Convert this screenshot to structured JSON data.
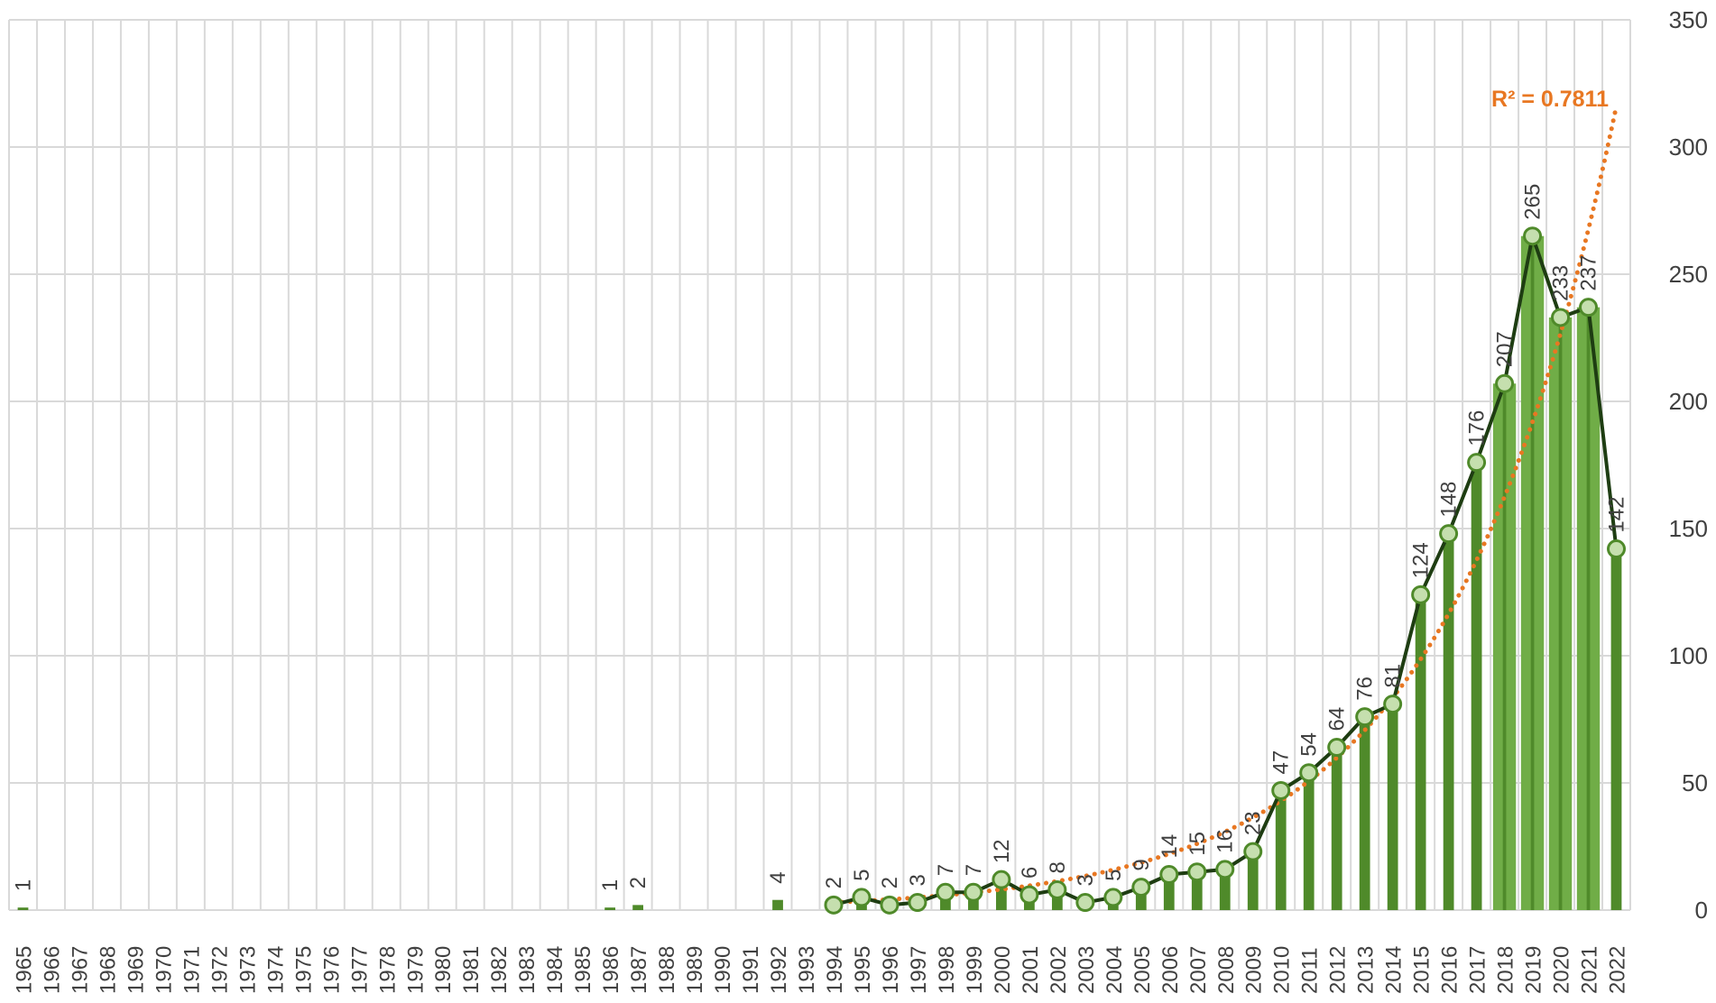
{
  "chart_data": {
    "type": "bar",
    "categories": [
      "1965",
      "1966",
      "1967",
      "1968",
      "1969",
      "1970",
      "1971",
      "1972",
      "1973",
      "1974",
      "1975",
      "1976",
      "1977",
      "1978",
      "1979",
      "1980",
      "1981",
      "1982",
      "1983",
      "1984",
      "1985",
      "1986",
      "1987",
      "1988",
      "1989",
      "1990",
      "1991",
      "1992",
      "1993",
      "1994",
      "1995",
      "1996",
      "1997",
      "1998",
      "1999",
      "2000",
      "2001",
      "2002",
      "2003",
      "2004",
      "2005",
      "2006",
      "2007",
      "2008",
      "2009",
      "2010",
      "2011",
      "2012",
      "2013",
      "2014",
      "2015",
      "2016",
      "2017",
      "2018",
      "2019",
      "2020",
      "2021",
      "2022"
    ],
    "values": [
      1,
      0,
      0,
      0,
      0,
      0,
      0,
      0,
      0,
      0,
      0,
      0,
      0,
      0,
      0,
      0,
      0,
      0,
      0,
      0,
      0,
      1,
      2,
      0,
      0,
      0,
      0,
      4,
      0,
      2,
      5,
      2,
      3,
      7,
      7,
      12,
      6,
      8,
      3,
      5,
      9,
      14,
      15,
      16,
      23,
      47,
      54,
      64,
      76,
      81,
      124,
      148,
      176,
      207,
      265,
      233,
      237,
      142
    ],
    "data_labels": [
      "1",
      "",
      "",
      "",
      "",
      "",
      "",
      "",
      "",
      "",
      "",
      "",
      "",
      "",
      "",
      "",
      "",
      "",
      "",
      "",
      "",
      "1",
      "2",
      "",
      "",
      "",
      "",
      "4",
      "",
      "2",
      "5",
      "2",
      "3",
      "7",
      "7",
      "12",
      "6",
      "8",
      "3",
      "5",
      "9",
      "14",
      "15",
      "16",
      "23",
      "47",
      "54",
      "64",
      "76",
      "81",
      "124",
      "148",
      "176",
      "207",
      "265",
      "233",
      "237",
      "142"
    ],
    "line_start_year": "1994",
    "trendline": {
      "type": "exponential",
      "label": "R² = 0.7811",
      "color": "#e87722",
      "start_year": "1994",
      "start_value": 3,
      "end_value": 316
    },
    "y_ticks": [
      "0",
      "50",
      "100",
      "150",
      "200",
      "250",
      "300",
      "350"
    ],
    "ylim": [
      0,
      350
    ],
    "yaxis_position": "right",
    "grid": true,
    "title": "",
    "xlabel": "",
    "ylabel": "",
    "colors": {
      "bar": "#4f8a2a",
      "bar_highlight": "#70ad47",
      "line": "#1e3d12",
      "marker_fill": "#c5dfae",
      "marker_stroke": "#4f8a2a",
      "grid": "#d9d9d9",
      "trendline": "#e87722",
      "text": "#404040"
    }
  }
}
